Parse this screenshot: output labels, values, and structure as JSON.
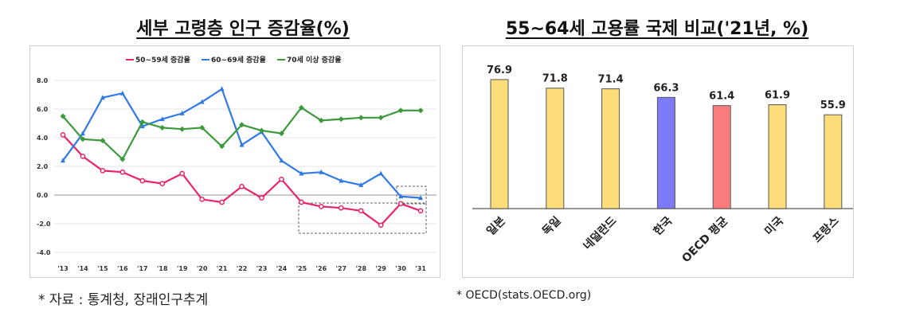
{
  "left": {
    "title": "세부 고령층 인구 증감율(%)",
    "source": "* 자료 : 통계청, 장래인구추계"
  },
  "right": {
    "title": "55~64세 고용률 국제 비교('21년, %)",
    "source": "* OECD(stats.OECD.org)"
  },
  "chart_data": [
    {
      "type": "line",
      "title": "세부 고령층 인구 증감율(%)",
      "categories": [
        "'13",
        "'14",
        "'15",
        "'16",
        "'17",
        "'18",
        "'19",
        "'20",
        "'21",
        "'22",
        "'23",
        "'24",
        "'25",
        "'26",
        "'27",
        "'28",
        "'29",
        "'30",
        "'31"
      ],
      "yticks": [
        "8.0",
        "6.0",
        "4.0",
        "2.0",
        "0.0",
        "-2.0",
        "-4.0"
      ],
      "ylim": [
        -4,
        8
      ],
      "grid": true,
      "legend": "top",
      "series": [
        {
          "name": "50~59세 증감율",
          "color": "#e8246e",
          "marker": "circle",
          "values": [
            4.2,
            2.7,
            1.7,
            1.6,
            1.0,
            0.8,
            1.5,
            -0.3,
            -0.5,
            0.6,
            -0.2,
            1.1,
            -0.5,
            -0.8,
            -0.9,
            -1.1,
            -2.1,
            -0.6,
            -1.1
          ]
        },
        {
          "name": "60~69세 증감율",
          "color": "#2f7ae5",
          "marker": "triangle",
          "values": [
            2.4,
            4.3,
            6.8,
            7.1,
            4.8,
            5.3,
            5.7,
            6.5,
            7.4,
            3.5,
            4.4,
            2.4,
            1.5,
            1.6,
            1.0,
            0.7,
            1.5,
            -0.1,
            -0.2
          ]
        },
        {
          "name": "70세 이상 증감율",
          "color": "#3c9a3c",
          "marker": "diamond",
          "values": [
            5.5,
            3.9,
            3.8,
            2.5,
            5.1,
            4.7,
            4.6,
            4.7,
            3.4,
            4.9,
            4.5,
            4.3,
            6.1,
            5.2,
            5.3,
            5.4,
            5.4,
            5.9,
            5.9
          ]
        }
      ]
    },
    {
      "type": "bar",
      "title": "55~64세 고용률 국제 비교('21년, %)",
      "categories": [
        "일본",
        "독일",
        "네덜란드",
        "한국",
        "OECD 평균",
        "미국",
        "프랑스"
      ],
      "values": [
        76.9,
        71.8,
        71.4,
        66.3,
        61.4,
        61.9,
        55.9
      ],
      "labels": [
        "76.9",
        "71.8",
        "71.4",
        "66.3",
        "61.4",
        "61.9",
        "55.9"
      ],
      "colors": [
        "#fddc7a",
        "#fddc7a",
        "#fddc7a",
        "#7b7bf7",
        "#fa7b7b",
        "#fddc7a",
        "#fddc7a"
      ]
    }
  ]
}
